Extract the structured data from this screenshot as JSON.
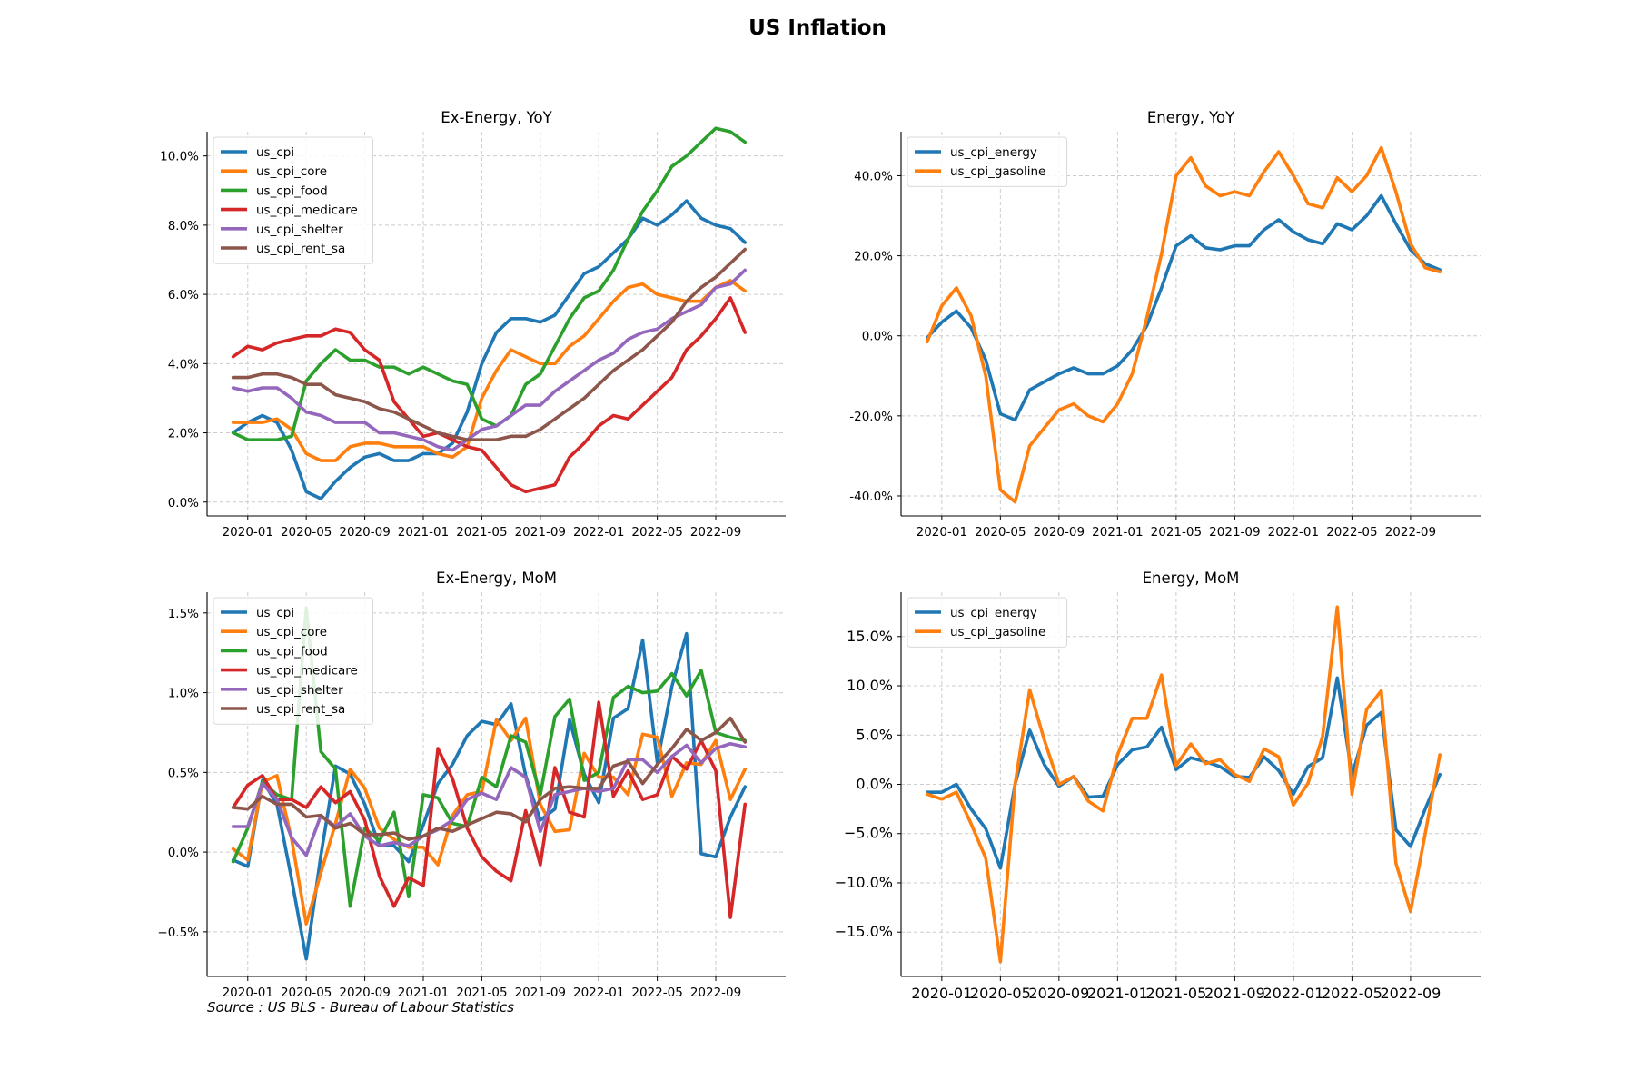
{
  "figure": {
    "title": "US Inflation",
    "source": "Source : US BLS - Bureau of Labour Statistics"
  },
  "colors": {
    "us_cpi": "#1f77b4",
    "us_cpi_core": "#ff7f0e",
    "us_cpi_food": "#2ca02c",
    "us_cpi_medicare": "#d62728",
    "us_cpi_shelter": "#9467bd",
    "us_cpi_rent_sa": "#8c564b",
    "us_cpi_energy": "#1f77b4",
    "us_cpi_gasoline": "#ff7f0e",
    "grid": "#cccccc"
  },
  "chart_data": [
    {
      "id": "ex-energy-yoy",
      "type": "line",
      "title": "Ex-Energy, YoY",
      "xlabel": "",
      "ylabel": "",
      "x_range": [
        "2019-12",
        "2022-12"
      ],
      "x_ticks": [
        "2020-01",
        "2020-05",
        "2020-09",
        "2021-01",
        "2021-05",
        "2021-09",
        "2022-01",
        "2022-05",
        "2022-09"
      ],
      "ylim": [
        -0.4,
        10.7
      ],
      "y_ticks": [
        0,
        2,
        4,
        6,
        8,
        10
      ],
      "y_unit": "%",
      "y_decimals": 1,
      "grid": true,
      "legend": "top-left",
      "series": [
        {
          "name": "us_cpi",
          "values": [
            2.0,
            2.3,
            2.5,
            2.3,
            1.5,
            0.3,
            0.1,
            0.6,
            1.0,
            1.3,
            1.4,
            1.2,
            1.2,
            1.4,
            1.4,
            1.7,
            2.6,
            4.0,
            4.9,
            5.3,
            5.3,
            5.2,
            5.4,
            6.0,
            6.6,
            6.8,
            7.2,
            7.6,
            8.2,
            8.0,
            8.3,
            8.7,
            8.2,
            8.0,
            7.9,
            7.5
          ]
        },
        {
          "name": "us_cpi_core",
          "values": [
            2.3,
            2.3,
            2.3,
            2.4,
            2.1,
            1.4,
            1.2,
            1.2,
            1.6,
            1.7,
            1.7,
            1.6,
            1.6,
            1.6,
            1.4,
            1.3,
            1.6,
            3.0,
            3.8,
            4.4,
            4.2,
            4.0,
            4.0,
            4.5,
            4.8,
            5.3,
            5.8,
            6.2,
            6.3,
            6.0,
            5.9,
            5.8,
            5.8,
            6.2,
            6.4,
            6.1
          ]
        },
        {
          "name": "us_cpi_food",
          "values": [
            2.0,
            1.8,
            1.8,
            1.8,
            1.9,
            3.5,
            4.0,
            4.4,
            4.1,
            4.1,
            3.9,
            3.9,
            3.7,
            3.9,
            3.7,
            3.5,
            3.4,
            2.4,
            2.2,
            2.5,
            3.4,
            3.7,
            4.5,
            5.3,
            5.9,
            6.1,
            6.7,
            7.6,
            8.4,
            9.0,
            9.7,
            10.0,
            10.4,
            10.8,
            10.7,
            10.4
          ]
        },
        {
          "name": "us_cpi_medicare",
          "values": [
            4.2,
            4.5,
            4.4,
            4.6,
            4.7,
            4.8,
            4.8,
            5.0,
            4.9,
            4.4,
            4.1,
            2.9,
            2.4,
            1.9,
            2.0,
            1.8,
            1.6,
            1.5,
            1.0,
            0.5,
            0.3,
            0.4,
            0.5,
            1.3,
            1.7,
            2.2,
            2.5,
            2.4,
            2.8,
            3.2,
            3.6,
            4.4,
            4.8,
            5.3,
            5.9,
            4.9
          ]
        },
        {
          "name": "us_cpi_shelter",
          "values": [
            3.3,
            3.2,
            3.3,
            3.3,
            3.0,
            2.6,
            2.5,
            2.3,
            2.3,
            2.3,
            2.0,
            2.0,
            1.9,
            1.8,
            1.6,
            1.5,
            1.8,
            2.1,
            2.2,
            2.5,
            2.8,
            2.8,
            3.2,
            3.5,
            3.8,
            4.1,
            4.3,
            4.7,
            4.9,
            5.0,
            5.3,
            5.5,
            5.7,
            6.2,
            6.3,
            6.7
          ]
        },
        {
          "name": "us_cpi_rent_sa",
          "values": [
            3.6,
            3.6,
            3.7,
            3.7,
            3.6,
            3.4,
            3.4,
            3.1,
            3.0,
            2.9,
            2.7,
            2.6,
            2.4,
            2.2,
            2.0,
            1.9,
            1.8,
            1.8,
            1.8,
            1.9,
            1.9,
            2.1,
            2.4,
            2.7,
            3.0,
            3.4,
            3.8,
            4.1,
            4.4,
            4.8,
            5.2,
            5.8,
            6.2,
            6.5,
            6.9,
            7.3
          ]
        }
      ]
    },
    {
      "id": "energy-yoy",
      "type": "line",
      "title": "Energy, YoY",
      "xlabel": "",
      "ylabel": "",
      "x_range": [
        "2019-12",
        "2022-12"
      ],
      "x_ticks": [
        "2020-01",
        "2020-05",
        "2020-09",
        "2021-01",
        "2021-05",
        "2021-09",
        "2022-01",
        "2022-05",
        "2022-09"
      ],
      "ylim": [
        -45,
        51
      ],
      "y_ticks": [
        -40,
        -20,
        0,
        20,
        40
      ],
      "y_unit": "%",
      "y_decimals": 1,
      "grid": true,
      "legend": "top-left",
      "series": [
        {
          "name": "us_cpi_energy",
          "values": [
            -0.5,
            3.4,
            6.2,
            2.0,
            -6.0,
            -19.5,
            -21.0,
            -13.5,
            -11.5,
            -9.5,
            -8.0,
            -9.5,
            -9.5,
            -7.5,
            -3.5,
            2.5,
            12.0,
            22.5,
            25.0,
            22.0,
            21.5,
            22.5,
            22.5,
            26.5,
            29.0,
            26.0,
            24.0,
            23.0,
            28.0,
            26.5,
            30.0,
            35.0,
            28.0,
            21.5,
            18.0,
            16.5
          ]
        },
        {
          "name": "us_cpi_gasoline",
          "values": [
            -1.5,
            7.5,
            12.0,
            5.0,
            -10.0,
            -38.5,
            -41.5,
            -27.5,
            -23.0,
            -18.5,
            -17.0,
            -20.0,
            -21.5,
            -17.0,
            -9.5,
            4.5,
            20.5,
            40.0,
            44.5,
            37.5,
            35.0,
            36.0,
            35.0,
            41.0,
            46.0,
            40.0,
            33.0,
            32.0,
            39.5,
            36.0,
            40.0,
            47.0,
            36.0,
            23.0,
            17.0,
            16.0
          ]
        }
      ]
    },
    {
      "id": "ex-energy-mom",
      "type": "line",
      "title": "Ex-Energy, MoM",
      "xlabel": "",
      "ylabel": "",
      "x_range": [
        "2019-12",
        "2022-12"
      ],
      "x_ticks": [
        "2020-01",
        "2020-05",
        "2020-09",
        "2021-01",
        "2021-05",
        "2021-09",
        "2022-01",
        "2022-05",
        "2022-09"
      ],
      "ylim": [
        -0.78,
        1.63
      ],
      "y_ticks": [
        -0.5,
        0,
        0.5,
        1.0,
        1.5
      ],
      "y_unit": "%",
      "y_decimals": 1,
      "y_minus": "unicode",
      "grid": true,
      "legend": "top-left",
      "series": [
        {
          "name": "us_cpi",
          "values": [
            -0.05,
            -0.09,
            0.45,
            0.3,
            -0.17,
            -0.67,
            -0.02,
            0.54,
            0.49,
            0.3,
            0.04,
            0.04,
            -0.06,
            0.17,
            0.43,
            0.55,
            0.73,
            0.82,
            0.8,
            0.93,
            0.48,
            0.2,
            0.27,
            0.83,
            0.49,
            0.31,
            0.84,
            0.9,
            1.33,
            0.56,
            1.04,
            1.37,
            -0.01,
            -0.03,
            0.22,
            0.41
          ]
        },
        {
          "name": "us_cpi_core",
          "values": [
            0.02,
            -0.05,
            0.44,
            0.48,
            0.08,
            -0.45,
            -0.13,
            0.18,
            0.52,
            0.4,
            0.15,
            0.08,
            0.03,
            0.03,
            -0.08,
            0.23,
            0.36,
            0.38,
            0.83,
            0.7,
            0.84,
            0.3,
            0.13,
            0.14,
            0.62,
            0.47,
            0.47,
            0.36,
            0.74,
            0.72,
            0.35,
            0.56,
            0.55,
            0.7,
            0.33,
            0.52
          ]
        },
        {
          "name": "us_cpi_food",
          "values": [
            -0.06,
            0.15,
            0.44,
            0.36,
            0.33,
            1.53,
            0.63,
            0.52,
            -0.34,
            0.15,
            0.07,
            0.25,
            -0.28,
            0.36,
            0.34,
            0.18,
            0.16,
            0.47,
            0.41,
            0.73,
            0.69,
            0.36,
            0.85,
            0.96,
            0.45,
            0.5,
            0.97,
            1.04,
            1.0,
            1.01,
            1.12,
            0.98,
            1.14,
            0.75,
            0.72,
            0.7
          ]
        },
        {
          "name": "us_cpi_medicare",
          "values": [
            0.28,
            0.42,
            0.48,
            0.33,
            0.33,
            0.28,
            0.41,
            0.31,
            0.38,
            0.2,
            -0.15,
            -0.34,
            -0.16,
            -0.21,
            0.65,
            0.46,
            0.15,
            -0.03,
            -0.12,
            -0.18,
            0.26,
            -0.08,
            0.53,
            0.25,
            0.22,
            0.94,
            0.35,
            0.51,
            0.33,
            0.36,
            0.6,
            0.52,
            0.7,
            0.51,
            -0.41,
            0.3
          ]
        },
        {
          "name": "us_cpi_shelter",
          "values": [
            0.16,
            0.16,
            0.43,
            0.33,
            0.09,
            -0.02,
            0.23,
            0.16,
            0.24,
            0.1,
            0.04,
            0.06,
            0.04,
            0.1,
            0.14,
            0.2,
            0.33,
            0.37,
            0.33,
            0.53,
            0.47,
            0.13,
            0.36,
            0.38,
            0.4,
            0.38,
            0.4,
            0.58,
            0.58,
            0.5,
            0.6,
            0.67,
            0.56,
            0.65,
            0.68,
            0.66
          ]
        },
        {
          "name": "us_cpi_rent_sa",
          "values": [
            0.28,
            0.27,
            0.35,
            0.3,
            0.3,
            0.22,
            0.23,
            0.15,
            0.18,
            0.11,
            0.11,
            0.12,
            0.08,
            0.1,
            0.15,
            0.13,
            0.17,
            0.21,
            0.25,
            0.24,
            0.19,
            0.33,
            0.4,
            0.41,
            0.4,
            0.4,
            0.54,
            0.57,
            0.43,
            0.55,
            0.65,
            0.77,
            0.7,
            0.75,
            0.84,
            0.69
          ]
        }
      ]
    },
    {
      "id": "energy-mom",
      "type": "line",
      "title": "Energy, MoM",
      "xlabel": "",
      "ylabel": "",
      "x_range": [
        "2019-12",
        "2022-12"
      ],
      "x_ticks": [
        "2020-01",
        "2020-05",
        "2020-09",
        "2021-01",
        "2021-05",
        "2021-09",
        "2022-01",
        "2022-05",
        "2022-09"
      ],
      "x_tick_font": "large",
      "ylim": [
        -19.5,
        19.5
      ],
      "y_ticks": [
        -15,
        -10,
        -5,
        0,
        5,
        10,
        15
      ],
      "y_unit": "%",
      "y_decimals": 1,
      "y_minus": "unicode",
      "y_tick_font": "large",
      "grid": true,
      "legend": "top-left",
      "series": [
        {
          "name": "us_cpi_energy",
          "values": [
            -0.8,
            -0.8,
            0.0,
            -2.5,
            -4.5,
            -8.5,
            0.0,
            5.5,
            2.0,
            -0.2,
            0.8,
            -1.3,
            -1.2,
            2.0,
            3.5,
            3.8,
            5.8,
            1.5,
            2.7,
            2.3,
            1.8,
            0.8,
            0.7,
            2.8,
            1.4,
            -1.0,
            1.8,
            2.7,
            10.8,
            0.9,
            6.0,
            7.3,
            -4.6,
            -6.3,
            -2.5,
            1.0
          ]
        },
        {
          "name": "us_cpi_gasoline",
          "values": [
            -1.0,
            -1.5,
            -0.8,
            -4.0,
            -7.5,
            -18.0,
            0.0,
            9.6,
            4.5,
            0.0,
            0.8,
            -1.7,
            -2.7,
            3.0,
            6.7,
            6.7,
            11.1,
            1.9,
            4.1,
            2.1,
            2.5,
            1.0,
            0.3,
            3.6,
            2.8,
            -2.1,
            0.1,
            4.9,
            18.0,
            -1.0,
            7.6,
            9.5,
            -8.0,
            -12.9,
            -5.0,
            3.0
          ]
        }
      ]
    }
  ]
}
